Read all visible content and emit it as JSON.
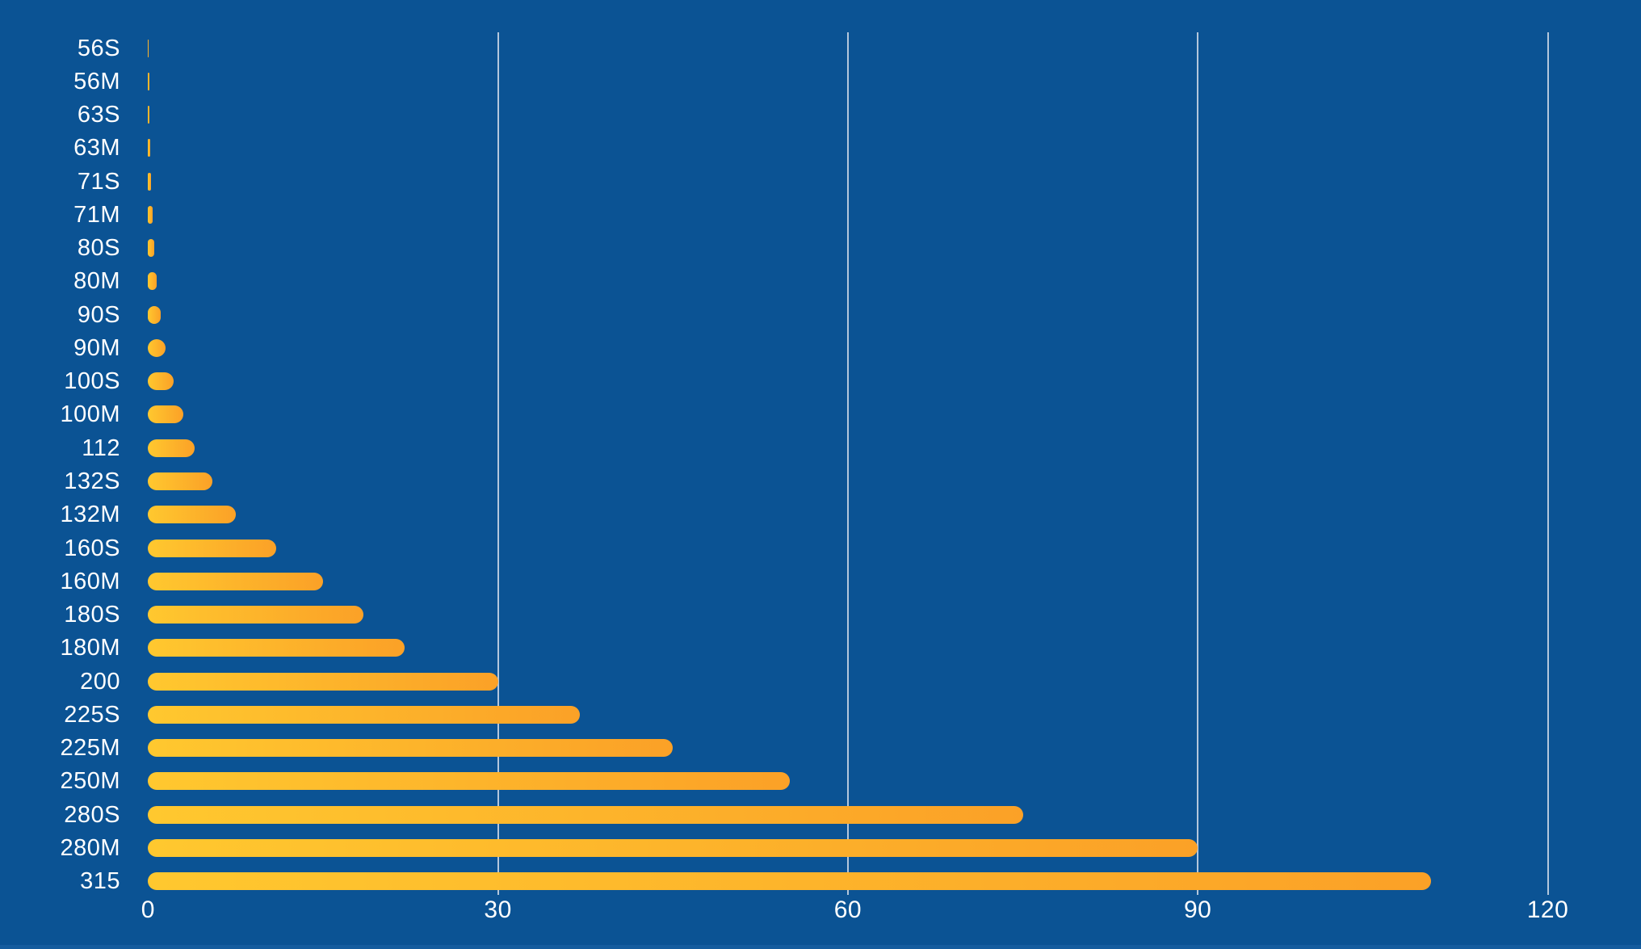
{
  "chart": {
    "background_color": "#0B5394",
    "bottom_edge_color": "#155C9E",
    "gridline_color": "rgba(222,229,238,0.8)",
    "text_color": "#FFFFFF",
    "bar_gradient_start": "#FFC82F",
    "bar_gradient_end": "#FBA127"
  },
  "chart_data": {
    "type": "bar",
    "orientation": "horizontal",
    "title": "",
    "xlabel": "",
    "ylabel": "",
    "categories": [
      "56S",
      "56M",
      "63S",
      "63M",
      "71S",
      "71M",
      "80S",
      "80M",
      "90S",
      "90M",
      "100S",
      "100M",
      "112",
      "132S",
      "132M",
      "160S",
      "160M",
      "180S",
      "180M",
      "200",
      "225S",
      "225M",
      "250M",
      "280S",
      "280M",
      "315"
    ],
    "values": [
      0.06,
      0.09,
      0.12,
      0.18,
      0.25,
      0.37,
      0.55,
      0.75,
      1.1,
      1.5,
      2.2,
      3,
      4,
      5.5,
      7.5,
      11,
      15,
      18.5,
      22,
      30,
      37,
      45,
      55,
      75,
      90,
      110
    ],
    "xlim": [
      0,
      120
    ],
    "xticks": [
      0,
      30,
      60,
      90,
      120
    ],
    "xtick_labels": [
      "0",
      "30",
      "60",
      "90",
      "120"
    ],
    "grid": "vertical-gridlines-at-30-60-90-120",
    "legend": "none"
  }
}
